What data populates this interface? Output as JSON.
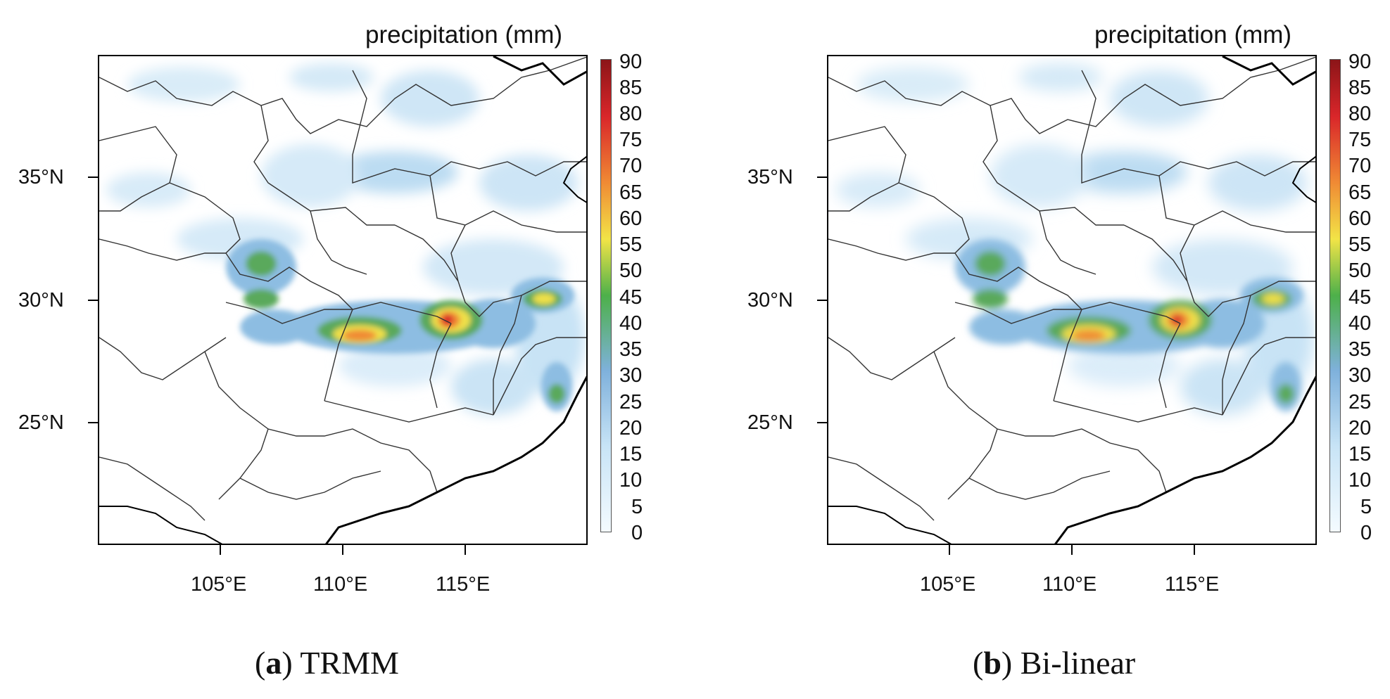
{
  "colorbar_title": "precipitation (mm)",
  "colorbar_levels": [
    "90",
    "85",
    "80",
    "75",
    "70",
    "65",
    "60",
    "55",
    "50",
    "45",
    "40",
    "35",
    "30",
    "25",
    "20",
    "15",
    "10",
    "5",
    "0"
  ],
  "lat_labels": [
    "35°N",
    "30°N",
    "25°N"
  ],
  "lon_labels": [
    "105°E",
    "110°E",
    "115°E"
  ],
  "panels": [
    {
      "letter": "a",
      "name": "TRMM"
    },
    {
      "letter": "b",
      "name": "Bi-linear"
    }
  ],
  "colors": {
    "low": "#f4fbff",
    "light_blue": "#c8e4f6",
    "blue": "#7fb1dc",
    "green": "#4db04a",
    "yellow": "#f2e447",
    "orange": "#f08a34",
    "red": "#d9262a",
    "dark_red": "#8c1518"
  }
}
